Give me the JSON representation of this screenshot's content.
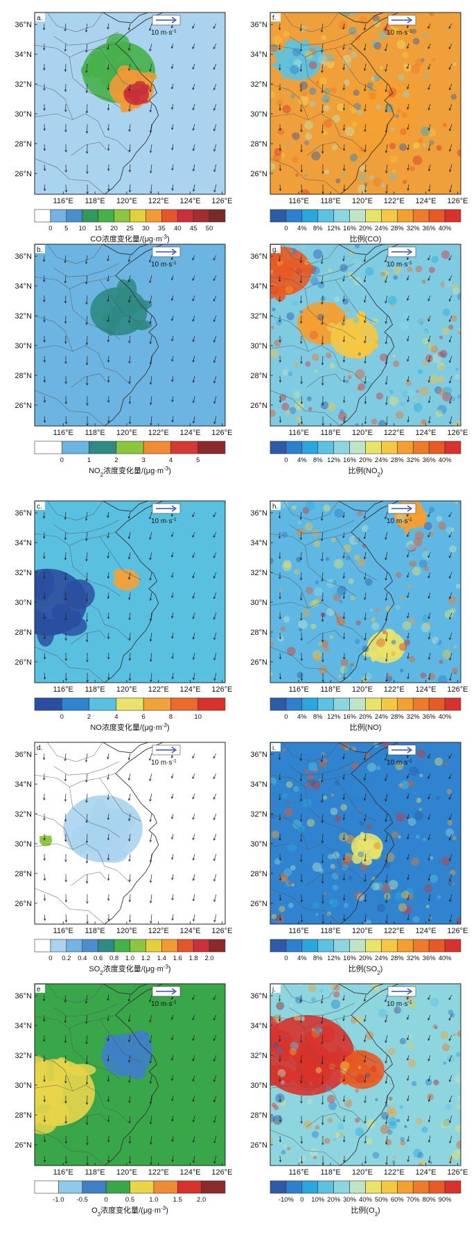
{
  "panels": [
    {
      "letter": "a.",
      "field": "conc",
      "label_pre": "CO",
      "label_sub": "",
      "label_post": "浓度变化量/(μg·m",
      "unit_exp": "-3",
      "bounds": [
        "0",
        "5",
        "10",
        "15",
        "20",
        "25",
        "30",
        "35",
        "40",
        "45",
        "50"
      ],
      "colors": [
        "#ffffff",
        "#74b4e4",
        "#4a8fcc",
        "#2f9a5c",
        "#46b04a",
        "#8cc63e",
        "#e3d13a",
        "#f19a36",
        "#e4572e",
        "#c8303a",
        "#a32d2f",
        "#7a2a2a"
      ],
      "base_color": "#a9d3ef",
      "hotspots": [
        {
          "level": 4,
          "lon": 119.5,
          "lat": 32.8,
          "r": 2.3
        },
        {
          "level": 7,
          "lon": 120.3,
          "lat": 31.7,
          "r": 1.4
        },
        {
          "level": 9,
          "lon": 120.6,
          "lat": 31.3,
          "r": 0.8
        }
      ]
    },
    {
      "letter": "f.",
      "field": "ratio",
      "label_pre": "比例(CO)",
      "label_sub": "",
      "label_post": "",
      "unit_exp": "",
      "bounds": [
        "0",
        "4%",
        "8%",
        "12%",
        "16%",
        "20%",
        "24%",
        "28%",
        "32%",
        "36%",
        "40%"
      ],
      "colors": [
        "#2f5aa8",
        "#2f7fcf",
        "#2aa8dd",
        "#5cc2e0",
        "#8ed6df",
        "#bfe4c8",
        "#e8e36a",
        "#f6c841",
        "#f3a032",
        "#ee7b2a",
        "#e85a25",
        "#d8322c"
      ],
      "base_color": "#f0a03a",
      "hotspots": [
        {
          "level": 3,
          "lon": 116,
          "lat": 33.5,
          "r": 1.4
        },
        {
          "level": 8,
          "lon": 121,
          "lat": 30,
          "r": 2.5
        }
      ]
    },
    {
      "letter": "b.",
      "field": "conc",
      "label_pre": "NO",
      "label_sub": "2",
      "label_post": "浓度变化量/(μg·m",
      "unit_exp": "-3",
      "bounds": [
        "0",
        "1",
        "2",
        "3",
        "4",
        "5"
      ],
      "colors": [
        "#ffffff",
        "#6cb4e2",
        "#2f8a84",
        "#8cc63e",
        "#f08a34",
        "#d23a33",
        "#8a2a2a"
      ],
      "base_color": "#6cb4e2",
      "hotspots": [
        {
          "level": 2,
          "lon": 119.5,
          "lat": 32.3,
          "r": 1.8
        }
      ]
    },
    {
      "letter": "g.",
      "field": "ratio",
      "label_pre": "比例(NO",
      "label_sub": "2",
      "label_post": ")",
      "unit_exp": "",
      "bounds": [
        "0",
        "4%",
        "8%",
        "12%",
        "16%",
        "20%",
        "24%",
        "28%",
        "32%",
        "36%",
        "40%"
      ],
      "colors": [
        "#2f5aa8",
        "#2f7fcf",
        "#2aa8dd",
        "#5cc2e0",
        "#8ed6df",
        "#bfe4c8",
        "#e8e36a",
        "#f6c841",
        "#f3a032",
        "#ee7b2a",
        "#e85a25",
        "#d8322c"
      ],
      "base_color": "#7fcbe2",
      "hotspots": [
        {
          "level": 10,
          "lon": 115,
          "lat": 35,
          "r": 1.8
        },
        {
          "level": 8,
          "lon": 117.5,
          "lat": 31.5,
          "r": 1.6
        },
        {
          "level": 7,
          "lon": 119.5,
          "lat": 30.5,
          "r": 1.5
        }
      ]
    },
    {
      "letter": "c.",
      "field": "conc",
      "label_pre": "NO",
      "label_sub": "",
      "label_post": "浓度变化量/(μg·m",
      "unit_exp": "-3",
      "bounds": [
        "0",
        "2",
        "4",
        "6",
        "8",
        "10"
      ],
      "colors": [
        "#2b4fa0",
        "#2f83cf",
        "#5ac0e0",
        "#e9e36b",
        "#f2a23a",
        "#ec6a2c",
        "#d8322c"
      ],
      "base_color": "#5ac0e0",
      "hotspots": [
        {
          "level": 0,
          "lon": 115,
          "lat": 30,
          "r": 2.5
        },
        {
          "level": 4,
          "lon": 120,
          "lat": 31.5,
          "r": 0.8
        }
      ]
    },
    {
      "letter": "h.",
      "field": "ratio",
      "label_pre": "比例(NO)",
      "label_sub": "",
      "label_post": "",
      "unit_exp": "",
      "bounds": [
        "0",
        "4%",
        "8%",
        "12%",
        "16%",
        "20%",
        "24%",
        "28%",
        "32%",
        "36%",
        "40%"
      ],
      "colors": [
        "#2f5aa8",
        "#2f7fcf",
        "#2aa8dd",
        "#5cc2e0",
        "#8ed6df",
        "#bfe4c8",
        "#e8e36a",
        "#f6c841",
        "#f3a032",
        "#ee7b2a",
        "#e85a25",
        "#d8322c"
      ],
      "base_color": "#5fb8e3",
      "hotspots": [
        {
          "level": 8,
          "lon": 123,
          "lat": 35.8,
          "r": 1.0
        },
        {
          "level": 6,
          "lon": 121.5,
          "lat": 27,
          "r": 1.2
        }
      ]
    },
    {
      "letter": "d.",
      "field": "conc",
      "label_pre": "SO",
      "label_sub": "2",
      "label_post": "浓度变化量/(μg·m",
      "unit_exp": "-3",
      "bounds": [
        "0",
        "0.2",
        "0.4",
        "0.6",
        "0.8",
        "1.0",
        "1.2",
        "1.4",
        "1.6",
        "1.8",
        "2.0"
      ],
      "colors": [
        "#ffffff",
        "#a9d3ef",
        "#74b4e4",
        "#4a8fcc",
        "#2f8a84",
        "#46b04a",
        "#8cc63e",
        "#e3d13a",
        "#f19a36",
        "#e4572e",
        "#c8303a",
        "#8a2a2a"
      ],
      "base_color": "#ffffff",
      "hotspots": [
        {
          "level": 1,
          "lon": 118.5,
          "lat": 31,
          "r": 2.5
        },
        {
          "level": 6,
          "lon": 114.9,
          "lat": 30.2,
          "r": 0.4
        }
      ]
    },
    {
      "letter": "i.",
      "field": "ratio",
      "label_pre": "比例(SO",
      "label_sub": "2",
      "label_post": ")",
      "unit_exp": "",
      "bounds": [
        "0",
        "4%",
        "8%",
        "12%",
        "16%",
        "20%",
        "24%",
        "28%",
        "32%",
        "36%",
        "40%"
      ],
      "colors": [
        "#2f5aa8",
        "#2f7fcf",
        "#2aa8dd",
        "#5cc2e0",
        "#8ed6df",
        "#bfe4c8",
        "#e8e36a",
        "#f6c841",
        "#f3a032",
        "#ee7b2a",
        "#e85a25",
        "#d8322c"
      ],
      "base_color": "#2f83cf",
      "hotspots": [
        {
          "level": 6,
          "lon": 120.3,
          "lat": 29.8,
          "r": 1.0
        }
      ]
    },
    {
      "letter": "e",
      "field": "conc",
      "label_pre": "O",
      "label_sub": "3",
      "label_post": "浓度变化量/(μg·m",
      "unit_exp": "-3",
      "bounds": [
        "-1.0",
        "-0.5",
        "0",
        "0.5",
        "1.0",
        "1.5",
        "2.0"
      ],
      "colors": [
        "#ffffff",
        "#8fcaea",
        "#3f7fc6",
        "#3aa64a",
        "#e8d54a",
        "#f08a34",
        "#d8322c",
        "#8a2a2a"
      ],
      "base_color": "#3aa64a",
      "hotspots": [
        {
          "level": 4,
          "lon": 115.5,
          "lat": 29.5,
          "r": 2.5
        },
        {
          "level": 2,
          "lon": 120,
          "lat": 32,
          "r": 1.6
        }
      ]
    },
    {
      "letter": "j.",
      "field": "ratio",
      "label_pre": "比例(O",
      "label_sub": "3",
      "label_post": ")",
      "unit_exp": "",
      "bounds": [
        "-10%",
        "0",
        "10%",
        "20%",
        "30%",
        "40%",
        "50%",
        "60%",
        "70%",
        "80%",
        "90%"
      ],
      "colors": [
        "#2f5aa8",
        "#2f7fcf",
        "#2aa8dd",
        "#5cc2e0",
        "#8ed6df",
        "#bfe4c8",
        "#e8e36a",
        "#f6c841",
        "#f3a032",
        "#ee7b2a",
        "#e85a25",
        "#d8322c"
      ],
      "base_color": "#8ed6df",
      "hotspots": [
        {
          "level": 11,
          "lon": 116.5,
          "lat": 32,
          "r": 3.0
        },
        {
          "level": 10,
          "lon": 120,
          "lat": 31,
          "r": 1.4
        }
      ]
    }
  ],
  "wind_ref_label": "10 m·s",
  "wind_ref_exp": "-1",
  "lon_labels": [
    "116°E",
    "118°E",
    "120°E",
    "122°E",
    "124°E",
    "126°E"
  ],
  "lat_labels": [
    "36°N",
    "34°N",
    "32°N",
    "30°N",
    "28°N",
    "26°N"
  ],
  "lon_ticks": [
    116,
    118,
    120,
    122,
    124,
    126
  ],
  "lat_ticks": [
    36,
    34,
    32,
    30,
    28,
    26
  ],
  "lon_range": [
    114.2,
    126.2
  ],
  "lat_range": [
    24.6,
    36.8
  ],
  "colors": {
    "coast": "#333333",
    "border": "#555555",
    "arrow": "#222222",
    "ref_arrow": "#3b4db0"
  }
}
